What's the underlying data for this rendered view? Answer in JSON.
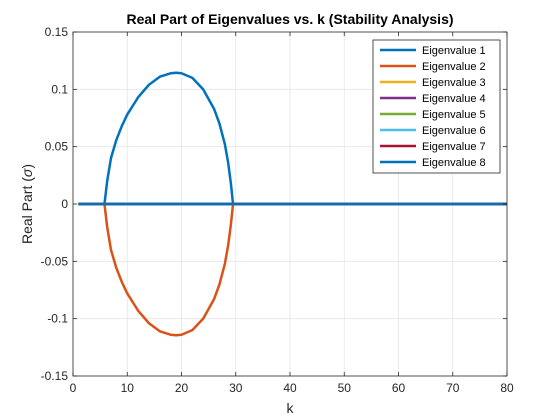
{
  "chart_data": {
    "type": "line",
    "title": "Real Part of Eigenvalues vs. k (Stability Analysis)",
    "xlabel": "k",
    "ylabel_main": "Real Part (",
    "ylabel_symbol": "σ",
    "ylabel_end": ")",
    "xlim": [
      0,
      80
    ],
    "ylim": [
      -0.15,
      0.15
    ],
    "xticks": [
      0,
      10,
      20,
      30,
      40,
      50,
      60,
      70,
      80
    ],
    "xtick_labels": [
      "0",
      "10",
      "20",
      "30",
      "40",
      "50",
      "60",
      "70",
      "80"
    ],
    "yticks": [
      -0.15,
      -0.1,
      -0.05,
      0,
      0.05,
      0.1,
      0.15
    ],
    "ytick_labels": [
      "-0.15",
      "-0.1",
      "-0.05",
      "0",
      "0.05",
      "0.1",
      "0.15"
    ],
    "grid": true,
    "legend_position": "top-right",
    "series": [
      {
        "name": "Eigenvalue 1",
        "color": "#0072BD",
        "x": [
          1,
          5.8,
          6.3,
          7,
          8,
          9,
          10,
          12,
          14,
          16,
          18,
          19,
          20,
          22,
          24,
          26,
          27,
          28,
          28.6,
          29.1,
          29.5,
          30,
          40,
          50,
          60,
          70,
          80
        ],
        "y": [
          0,
          0,
          0.02,
          0.04,
          0.056,
          0.068,
          0.078,
          0.093,
          0.104,
          0.111,
          0.114,
          0.1145,
          0.114,
          0.11,
          0.1,
          0.083,
          0.07,
          0.052,
          0.036,
          0.018,
          0,
          0,
          0,
          0,
          0,
          0,
          0
        ]
      },
      {
        "name": "Eigenvalue 2",
        "color": "#D95319",
        "x": [
          5.8,
          6.3,
          7,
          8,
          9,
          10,
          12,
          14,
          16,
          18,
          19,
          20,
          22,
          24,
          26,
          27,
          28,
          28.6,
          29.1,
          29.5
        ],
        "y": [
          0,
          -0.02,
          -0.04,
          -0.056,
          -0.068,
          -0.078,
          -0.093,
          -0.104,
          -0.111,
          -0.114,
          -0.1145,
          -0.114,
          -0.11,
          -0.1,
          -0.083,
          -0.07,
          -0.052,
          -0.036,
          -0.018,
          0
        ]
      },
      {
        "name": "Eigenvalue 3",
        "color": "#EDB120",
        "x": [
          1,
          80
        ],
        "y": [
          0,
          0
        ]
      },
      {
        "name": "Eigenvalue 4",
        "color": "#7E2F8E",
        "x": [
          1,
          80
        ],
        "y": [
          0,
          0
        ]
      },
      {
        "name": "Eigenvalue 5",
        "color": "#77AC30",
        "x": [
          1,
          80
        ],
        "y": [
          0,
          0
        ]
      },
      {
        "name": "Eigenvalue 6",
        "color": "#4DBEEE",
        "x": [
          6,
          29.5
        ],
        "y": [
          0,
          0
        ]
      },
      {
        "name": "Eigenvalue 7",
        "color": "#A2142F",
        "x": [
          1,
          80
        ],
        "y": [
          0,
          0
        ]
      },
      {
        "name": "Eigenvalue 8",
        "color": "#0072BD",
        "x": [
          1,
          5.8,
          29.5,
          80
        ],
        "y": [
          0,
          0,
          0,
          0
        ]
      }
    ]
  }
}
